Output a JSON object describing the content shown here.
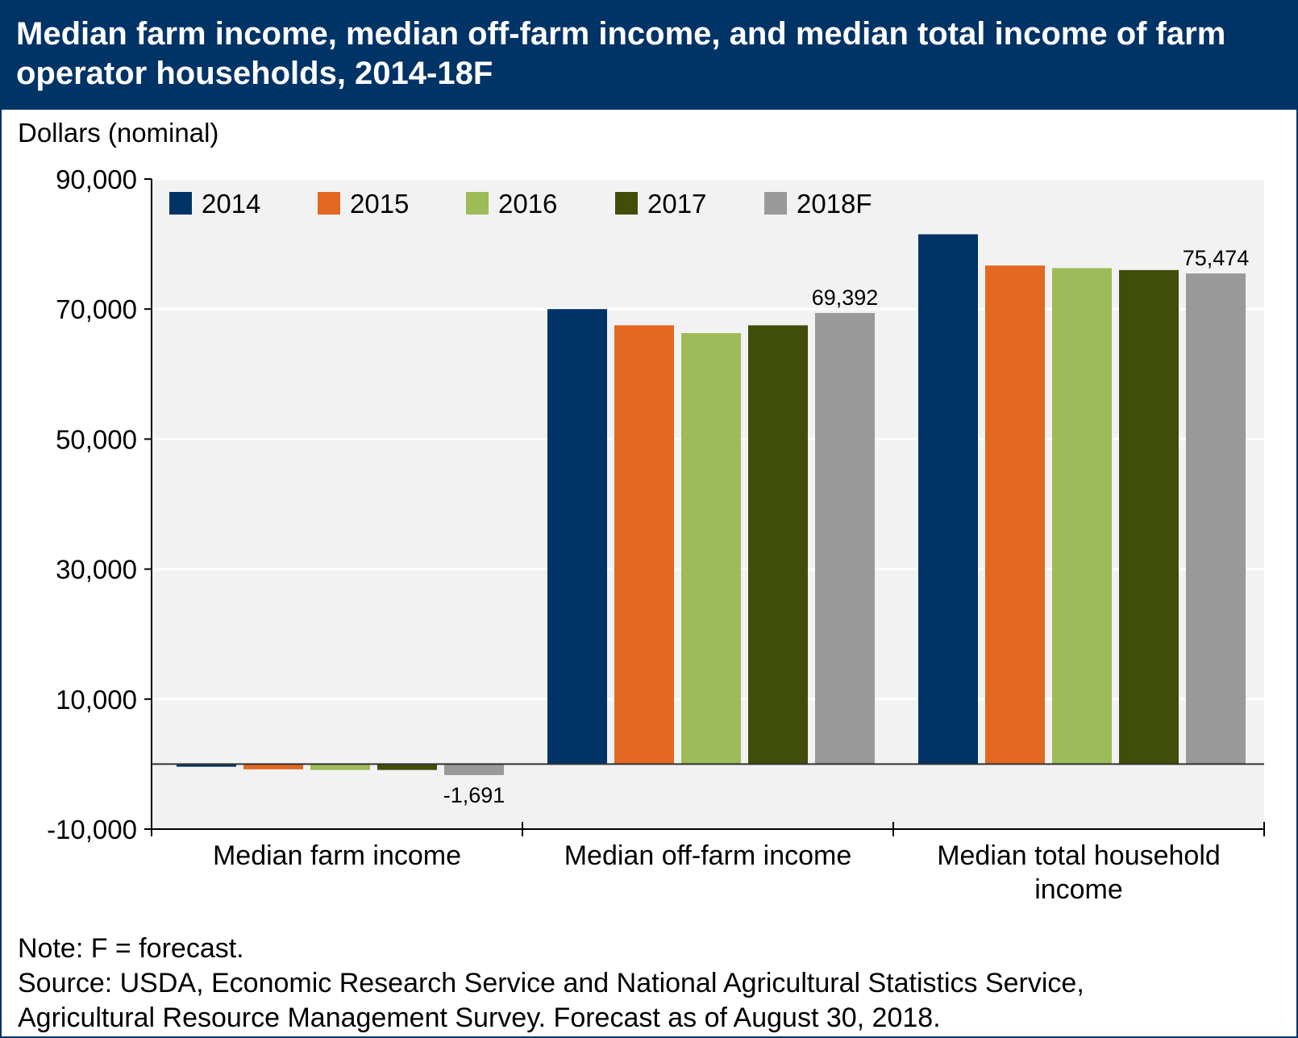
{
  "header": {
    "title": "Median farm income, median off-farm income, and median total income of farm operator households, 2014-18F"
  },
  "chart_data": {
    "type": "bar",
    "title": "Median farm income, median off-farm income, and median total income of farm operator households, 2014-18F",
    "ylabel": "Dollars (nominal)",
    "xlabel": "",
    "ylim": [
      -10000,
      90000
    ],
    "yticks": [
      -10000,
      10000,
      30000,
      50000,
      70000,
      90000
    ],
    "ytick_labels": [
      "-10,000",
      "10,000",
      "30,000",
      "50,000",
      "70,000",
      "90,000"
    ],
    "categories": [
      "Median farm income",
      "Median off-farm income",
      "Median total household income"
    ],
    "category_lines": [
      [
        "Median farm income"
      ],
      [
        "Median off-farm income"
      ],
      [
        "Median total household",
        "income"
      ]
    ],
    "series": [
      {
        "name": "2014",
        "color": "#003366",
        "values": [
          -400,
          70000,
          81500
        ]
      },
      {
        "name": "2015",
        "color": "#e36821",
        "values": [
          -800,
          67500,
          76700
        ]
      },
      {
        "name": "2016",
        "color": "#9dbb58",
        "values": [
          -900,
          66300,
          76300
        ]
      },
      {
        "name": "2017",
        "color": "#414e0a",
        "values": [
          -900,
          67500,
          76000
        ]
      },
      {
        "name": "2018F",
        "color": "#999999",
        "values": [
          -1691,
          69392,
          75474
        ]
      }
    ],
    "data_labels": [
      {
        "series": 4,
        "category": 0,
        "text": "-1,691"
      },
      {
        "series": 4,
        "category": 1,
        "text": "69,392"
      },
      {
        "series": 4,
        "category": 2,
        "text": "75,474"
      }
    ],
    "grid": true,
    "legend": "top-left"
  },
  "footer": {
    "note": "Note: F = forecast.",
    "source_line1": "Source: USDA, Economic Research Service and National Agricultural Statistics Service,",
    "source_line2": "Agricultural Resource Management Survey. Forecast as of August 30, 2018."
  }
}
